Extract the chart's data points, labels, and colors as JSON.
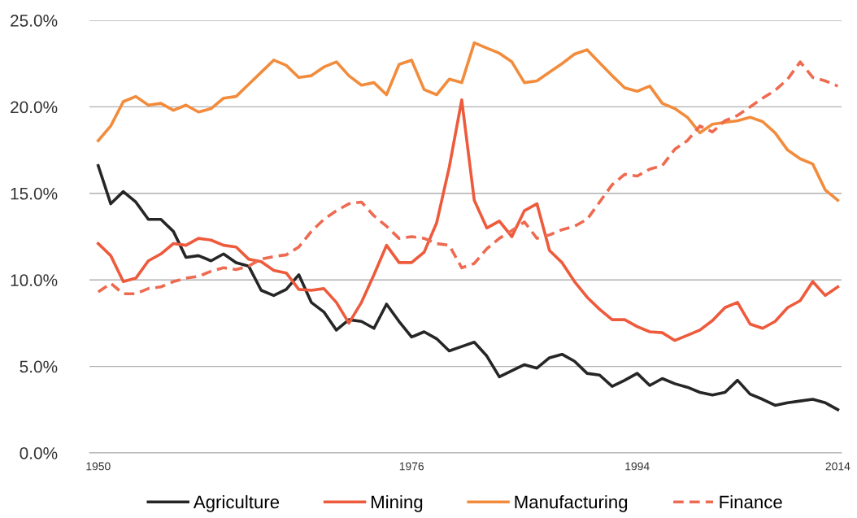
{
  "chart_data": {
    "type": "line",
    "categories": [
      "1950",
      null,
      null,
      null,
      null,
      null,
      null,
      null,
      null,
      null,
      null,
      null,
      null,
      null,
      null,
      null,
      null,
      null,
      null,
      null,
      null,
      null,
      null,
      null,
      null,
      "1976",
      null,
      null,
      null,
      null,
      null,
      null,
      null,
      null,
      null,
      null,
      null,
      null,
      null,
      null,
      null,
      null,
      null,
      "1994",
      null,
      null,
      null,
      null,
      null,
      null,
      null,
      null,
      null,
      null,
      null,
      null,
      null,
      null,
      null,
      "2014"
    ],
    "series": [
      {
        "name": "Agriculture",
        "color": "#262626",
        "line_style": "solid",
        "values": [
          16.6,
          14.4,
          15.1,
          14.5,
          13.5,
          13.5,
          12.8,
          11.3,
          11.4,
          11.1,
          11.5,
          11.0,
          10.8,
          9.4,
          9.1,
          9.45,
          10.3,
          8.7,
          8.15,
          7.1,
          7.7,
          7.6,
          7.2,
          8.6,
          7.6,
          6.7,
          7.0,
          6.6,
          5.9,
          6.15,
          6.4,
          5.6,
          4.4,
          4.75,
          5.1,
          4.9,
          5.5,
          5.7,
          5.3,
          4.6,
          4.5,
          3.85,
          4.2,
          4.6,
          3.9,
          4.3,
          4.0,
          3.8,
          3.5,
          3.35,
          3.5,
          4.2,
          3.4,
          3.1,
          2.75,
          2.9,
          3.0,
          3.1,
          2.9,
          2.5
        ]
      },
      {
        "name": "Mining",
        "color": "#ee5a3c",
        "line_style": "solid",
        "values": [
          12.1,
          11.4,
          9.9,
          10.1,
          11.1,
          11.5,
          12.1,
          12.0,
          12.4,
          12.3,
          12.0,
          11.9,
          11.2,
          11.05,
          10.55,
          10.4,
          9.45,
          9.4,
          9.5,
          8.7,
          7.5,
          8.7,
          10.3,
          12.0,
          11.0,
          11.0,
          11.6,
          13.3,
          16.5,
          20.4,
          14.6,
          13.0,
          13.4,
          12.5,
          14.0,
          14.4,
          11.7,
          11.0,
          9.9,
          9.0,
          8.3,
          7.7,
          7.7,
          7.3,
          7.0,
          6.95,
          6.5,
          6.8,
          7.1,
          7.65,
          8.4,
          8.7,
          7.45,
          7.2,
          7.6,
          8.4,
          8.8,
          9.9,
          9.1,
          9.6
        ]
      },
      {
        "name": "Manufacturing",
        "color": "#f28c3c",
        "line_style": "solid",
        "values": [
          18.05,
          18.9,
          20.3,
          20.6,
          20.1,
          20.2,
          19.8,
          20.1,
          19.7,
          19.9,
          20.5,
          20.6,
          21.3,
          22.0,
          22.7,
          22.4,
          21.7,
          21.8,
          22.3,
          22.6,
          21.8,
          21.25,
          21.4,
          20.7,
          22.45,
          22.7,
          21.0,
          20.7,
          21.6,
          21.4,
          23.7,
          23.4,
          23.1,
          22.6,
          21.4,
          21.5,
          22.0,
          22.5,
          23.05,
          23.3,
          22.55,
          21.8,
          21.1,
          20.9,
          21.2,
          20.2,
          19.9,
          19.4,
          18.5,
          19.0,
          19.1,
          19.2,
          19.4,
          19.15,
          18.5,
          17.5,
          17.0,
          16.7,
          15.2,
          14.6
        ]
      },
      {
        "name": "Finance",
        "color": "#ee6a50",
        "line_style": "dashed",
        "values": [
          9.3,
          9.8,
          9.2,
          9.2,
          9.5,
          9.6,
          9.9,
          10.1,
          10.2,
          10.5,
          10.7,
          10.6,
          10.8,
          11.2,
          11.35,
          11.45,
          11.9,
          12.8,
          13.5,
          14.0,
          14.4,
          14.5,
          13.7,
          13.1,
          12.4,
          12.5,
          12.4,
          12.1,
          12.0,
          10.7,
          10.95,
          11.8,
          12.4,
          12.85,
          13.35,
          12.4,
          12.6,
          12.9,
          13.1,
          13.5,
          14.5,
          15.5,
          16.1,
          16.0,
          16.4,
          16.6,
          17.55,
          18.05,
          18.9,
          18.55,
          19.2,
          19.5,
          20.0,
          20.5,
          20.95,
          21.6,
          22.6,
          21.7,
          21.5,
          21.2
        ]
      }
    ],
    "ylim": [
      0,
      25
    ],
    "yticks": [
      {
        "value": 0,
        "label": "0.0%"
      },
      {
        "value": 5,
        "label": "5.0%"
      },
      {
        "value": 10,
        "label": "10.0%"
      },
      {
        "value": 15,
        "label": "15.0%"
      },
      {
        "value": 20,
        "label": "20.0%"
      },
      {
        "value": 25,
        "label": "25.0%"
      }
    ],
    "grid": "y",
    "legend": "bottom"
  }
}
